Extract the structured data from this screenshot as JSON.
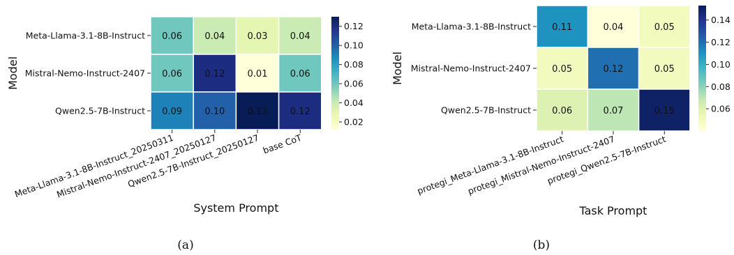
{
  "captions": [
    "(a)",
    "(b)"
  ],
  "chart_data": [
    {
      "type": "heatmap",
      "xlabel": "System Prompt",
      "ylabel": "Model",
      "rows": [
        "Meta-Llama-3.1-8B-Instruct",
        "Mistral-Nemo-Instruct-2407",
        "Qwen2.5-7B-Instruct"
      ],
      "columns": [
        "Meta-Llama-3.1-8B-Instruct_20250311",
        "Mistral-Nemo-Instruct-2407_20250127",
        "Qwen2.5-7B-Instruct_20250127",
        "base CoT"
      ],
      "values": [
        [
          0.06,
          0.04,
          0.03,
          0.04
        ],
        [
          0.06,
          0.12,
          0.01,
          0.06
        ],
        [
          0.09,
          0.1,
          0.13,
          0.12
        ]
      ],
      "value_labels": [
        [
          "0.06",
          "0.04",
          "0.03",
          "0.04"
        ],
        [
          "0.06",
          "0.12",
          "0.01",
          "0.06"
        ],
        [
          "0.09",
          "0.10",
          "0.13",
          "0.12"
        ]
      ],
      "colormap": "YlGnBu",
      "vmin": 0.012,
      "vmax": 0.13,
      "colorbar_ticks": [
        "0.02",
        "0.04",
        "0.06",
        "0.08",
        "0.10",
        "0.12"
      ]
    },
    {
      "type": "heatmap",
      "xlabel": "Task Prompt",
      "ylabel": "Model",
      "rows": [
        "Meta-Llama-3.1-8B-Instruct",
        "Mistral-Nemo-Instruct-2407",
        "Qwen2.5-7B-Instruct"
      ],
      "columns": [
        "protegi_Meta-Llama-3.1-8B-Instruct",
        "protegi_Mistral-Nemo-Instruct-2407",
        "protegi_Qwen2.5-7B-Instruct"
      ],
      "values": [
        [
          0.11,
          0.04,
          0.05
        ],
        [
          0.05,
          0.12,
          0.05
        ],
        [
          0.06,
          0.07,
          0.15
        ]
      ],
      "value_labels": [
        [
          "0.11",
          "0.04",
          "0.05"
        ],
        [
          "0.05",
          "0.12",
          "0.05"
        ],
        [
          "0.06",
          "0.07",
          "0.15"
        ]
      ],
      "colormap": "YlGnBu",
      "vmin": 0.04,
      "vmax": 0.153,
      "colorbar_ticks": [
        "0.06",
        "0.08",
        "0.10",
        "0.12",
        "0.14"
      ]
    }
  ]
}
